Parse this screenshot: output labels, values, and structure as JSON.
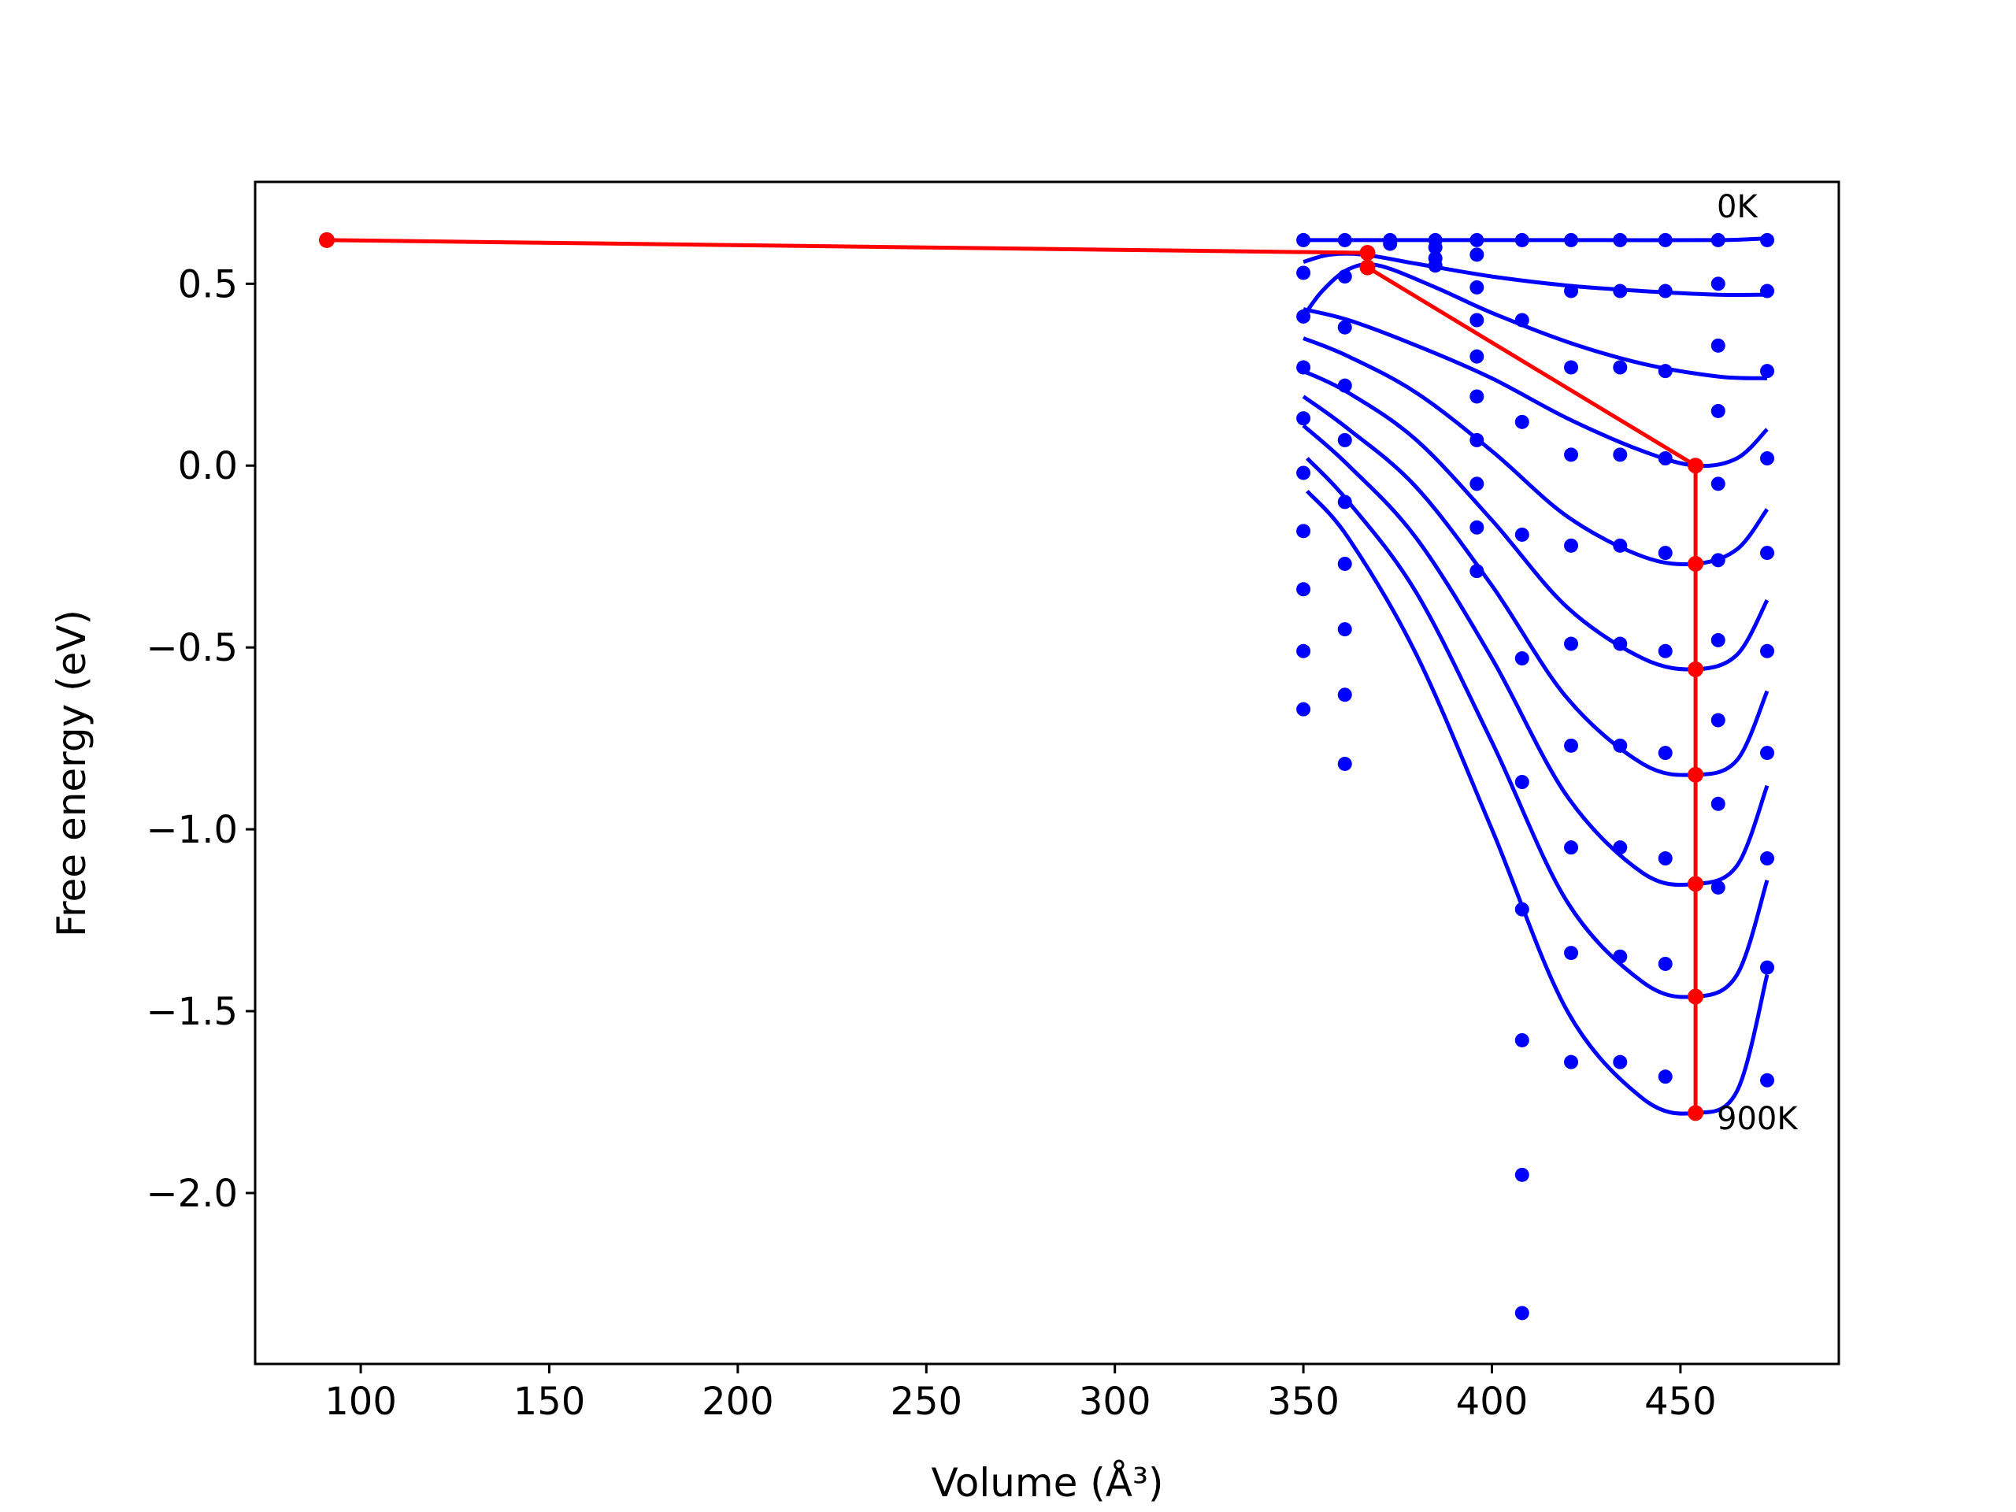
{
  "chart_data": {
    "type": "scatter",
    "xlabel": "Volume (Å³)",
    "ylabel": "Free energy (eV)",
    "xlim": [
      72,
      492
    ],
    "ylim": [
      -2.47,
      0.78
    ],
    "x_ticks": [
      100,
      150,
      200,
      250,
      300,
      350,
      400,
      450
    ],
    "y_ticks": [
      0.5,
      0.0,
      -0.5,
      -1.0,
      -1.5,
      -2.0
    ],
    "x_tick_labels": [
      "100",
      "150",
      "200",
      "250",
      "300",
      "350",
      "400",
      "450"
    ],
    "y_tick_labels": [
      "0.5",
      "0.0",
      "−0.5",
      "−1.0",
      "−1.5",
      "−2.0"
    ],
    "annotations": [
      {
        "text": "0K",
        "x": 457,
        "y": 0.7
      },
      {
        "text": "900K",
        "x": 457,
        "y": -1.8
      }
    ],
    "series": [
      {
        "color": "#0000ff",
        "style": "points",
        "points": [
          [
            350,
            0.62
          ],
          [
            361,
            0.62
          ],
          [
            373,
            0.62
          ],
          [
            385,
            0.62
          ],
          [
            396,
            0.62
          ],
          [
            408,
            0.62
          ],
          [
            421,
            0.62
          ],
          [
            434,
            0.62
          ],
          [
            446,
            0.62
          ],
          [
            460,
            0.62
          ],
          [
            473,
            0.62
          ],
          [
            350,
            0.53
          ],
          [
            361,
            0.52
          ],
          [
            373,
            0.61
          ],
          [
            385,
            0.6
          ],
          [
            396,
            0.58
          ],
          [
            396,
            0.49
          ],
          [
            421,
            0.48
          ],
          [
            434,
            0.48
          ],
          [
            446,
            0.48
          ],
          [
            460,
            0.5
          ],
          [
            473,
            0.48
          ],
          [
            385,
            0.57
          ],
          [
            385,
            0.55
          ],
          [
            350,
            0.41
          ],
          [
            361,
            0.38
          ],
          [
            396,
            0.4
          ],
          [
            408,
            0.4
          ],
          [
            421,
            0.27
          ],
          [
            434,
            0.27
          ],
          [
            446,
            0.26
          ],
          [
            460,
            0.33
          ],
          [
            473,
            0.26
          ],
          [
            350,
            0.27
          ],
          [
            361,
            0.22
          ],
          [
            396,
            0.3
          ],
          [
            396,
            0.19
          ],
          [
            408,
            0.12
          ],
          [
            421,
            0.03
          ],
          [
            434,
            0.03
          ],
          [
            446,
            0.02
          ],
          [
            460,
            0.15
          ],
          [
            473,
            0.02
          ],
          [
            350,
            0.13
          ],
          [
            361,
            0.07
          ],
          [
            396,
            0.07
          ],
          [
            396,
            -0.05
          ],
          [
            408,
            -0.19
          ],
          [
            421,
            -0.22
          ],
          [
            434,
            -0.22
          ],
          [
            446,
            -0.24
          ],
          [
            460,
            -0.05
          ],
          [
            473,
            -0.24
          ],
          [
            350,
            -0.02
          ],
          [
            361,
            -0.1
          ],
          [
            396,
            -0.17
          ],
          [
            396,
            -0.29
          ],
          [
            408,
            -0.53
          ],
          [
            421,
            -0.49
          ],
          [
            434,
            -0.49
          ],
          [
            446,
            -0.51
          ],
          [
            460,
            -0.26
          ],
          [
            473,
            -0.51
          ],
          [
            350,
            -0.18
          ],
          [
            361,
            -0.27
          ],
          [
            408,
            -0.87
          ],
          [
            421,
            -0.77
          ],
          [
            434,
            -0.77
          ],
          [
            446,
            -0.79
          ],
          [
            460,
            -0.48
          ],
          [
            473,
            -0.79
          ],
          [
            350,
            -0.34
          ],
          [
            361,
            -0.45
          ],
          [
            408,
            -1.22
          ],
          [
            421,
            -1.05
          ],
          [
            434,
            -1.05
          ],
          [
            446,
            -1.08
          ],
          [
            460,
            -0.7
          ],
          [
            473,
            -1.08
          ],
          [
            350,
            -0.51
          ],
          [
            361,
            -0.63
          ],
          [
            408,
            -1.58
          ],
          [
            421,
            -1.34
          ],
          [
            434,
            -1.35
          ],
          [
            446,
            -1.37
          ],
          [
            460,
            -0.93
          ],
          [
            473,
            -1.38
          ],
          [
            350,
            -0.67
          ],
          [
            361,
            -0.82
          ],
          [
            408,
            -1.95
          ],
          [
            421,
            -1.64
          ],
          [
            434,
            -1.64
          ],
          [
            446,
            -1.68
          ],
          [
            460,
            -1.16
          ],
          [
            473,
            -1.69
          ],
          [
            408,
            -2.33
          ]
        ]
      },
      {
        "color": "#0000ff",
        "style": "lines",
        "curves": [
          [
            [
              350,
              0.62
            ],
            [
              370,
              0.62
            ],
            [
              400,
              0.62
            ],
            [
              430,
              0.62
            ],
            [
              460,
              0.62
            ],
            [
              473,
              0.625
            ]
          ],
          [
            [
              350,
              0.56
            ],
            [
              357,
              0.58
            ],
            [
              366,
              0.58
            ],
            [
              380,
              0.555
            ],
            [
              400,
              0.52
            ],
            [
              420,
              0.495
            ],
            [
              440,
              0.48
            ],
            [
              460,
              0.47
            ],
            [
              473,
              0.47
            ]
          ],
          [
            [
              350,
              0.41
            ],
            [
              355,
              0.48
            ],
            [
              362,
              0.54
            ],
            [
              370,
              0.55
            ],
            [
              385,
              0.49
            ],
            [
              400,
              0.42
            ],
            [
              420,
              0.34
            ],
            [
              440,
              0.28
            ],
            [
              460,
              0.245
            ],
            [
              473,
              0.24
            ]
          ],
          [
            [
              350,
              0.43
            ],
            [
              362,
              0.4
            ],
            [
              380,
              0.33
            ],
            [
              400,
              0.24
            ],
            [
              420,
              0.13
            ],
            [
              440,
              0.04
            ],
            [
              454,
              0.0
            ],
            [
              465,
              0.02
            ],
            [
              473,
              0.1
            ]
          ],
          [
            [
              350,
              0.35
            ],
            [
              362,
              0.3
            ],
            [
              380,
              0.2
            ],
            [
              400,
              0.04
            ],
            [
              420,
              -0.14
            ],
            [
              440,
              -0.25
            ],
            [
              454,
              -0.27
            ],
            [
              465,
              -0.23
            ],
            [
              473,
              -0.12
            ]
          ],
          [
            [
              350,
              0.26
            ],
            [
              362,
              0.2
            ],
            [
              380,
              0.07
            ],
            [
              400,
              -0.15
            ],
            [
              420,
              -0.39
            ],
            [
              440,
              -0.53
            ],
            [
              454,
              -0.56
            ],
            [
              465,
              -0.52
            ],
            [
              473,
              -0.37
            ]
          ],
          [
            [
              350,
              0.19
            ],
            [
              362,
              0.1
            ],
            [
              380,
              -0.06
            ],
            [
              400,
              -0.33
            ],
            [
              420,
              -0.64
            ],
            [
              440,
              -0.82
            ],
            [
              454,
              -0.85
            ],
            [
              465,
              -0.81
            ],
            [
              473,
              -0.62
            ]
          ],
          [
            [
              350,
              0.11
            ],
            [
              362,
              0.0
            ],
            [
              380,
              -0.2
            ],
            [
              400,
              -0.53
            ],
            [
              420,
              -0.91
            ],
            [
              440,
              -1.12
            ],
            [
              454,
              -1.15
            ],
            [
              465,
              -1.1
            ],
            [
              473,
              -0.88
            ]
          ],
          [
            [
              351,
              0.02
            ],
            [
              362,
              -0.1
            ],
            [
              380,
              -0.35
            ],
            [
              400,
              -0.76
            ],
            [
              420,
              -1.2
            ],
            [
              440,
              -1.42
            ],
            [
              454,
              -1.46
            ],
            [
              465,
              -1.4
            ],
            [
              473,
              -1.14
            ]
          ],
          [
            [
              351,
              -0.07
            ],
            [
              362,
              -0.2
            ],
            [
              380,
              -0.52
            ],
            [
              400,
              -1.0
            ],
            [
              420,
              -1.5
            ],
            [
              440,
              -1.74
            ],
            [
              454,
              -1.78
            ],
            [
              465,
              -1.72
            ],
            [
              473,
              -1.4
            ]
          ]
        ]
      },
      {
        "color": "#ff0000",
        "style": "line-markers",
        "points": [
          [
            91,
            0.62
          ],
          [
            367,
            0.585
          ],
          [
            367,
            0.545
          ],
          [
            454,
            0.0
          ],
          [
            454,
            -0.27
          ],
          [
            454,
            -0.56
          ],
          [
            454,
            -0.85
          ],
          [
            454,
            -1.15
          ],
          [
            454,
            -1.46
          ],
          [
            454,
            -1.78
          ]
        ]
      }
    ]
  }
}
